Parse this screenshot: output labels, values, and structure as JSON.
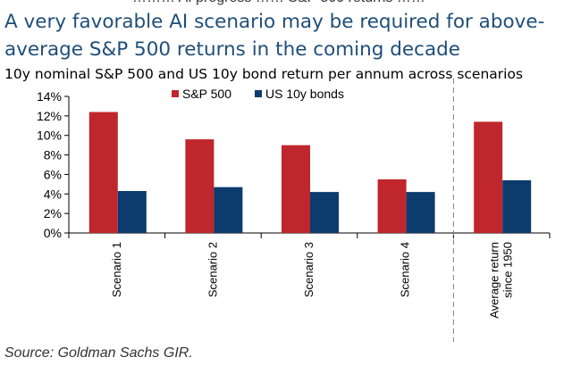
{
  "header": {
    "title": "A very favorable AI scenario may be required for above-average S&P 500 returns in the coming decade",
    "subtitle": "10y nominal S&P 500 and US 10y bond return per annum across scenarios"
  },
  "source": "Source: Goldman Sachs GIR.",
  "colors": {
    "sp500": "#c0262d",
    "bonds": "#0c3b6e",
    "title": "#1f4e79"
  },
  "chart_data": {
    "type": "bar",
    "title": "",
    "xlabel": "",
    "ylabel": "",
    "categories": [
      "Scenario 1",
      "Scenario 2",
      "Scenario 3",
      "Scenario 4",
      [
        "Average return",
        "since 1950"
      ]
    ],
    "series": [
      {
        "name": "S&P 500",
        "values": [
          12.4,
          9.6,
          9.0,
          5.5,
          11.4
        ]
      },
      {
        "name": "US 10y bonds",
        "values": [
          4.3,
          4.7,
          4.2,
          4.2,
          5.4
        ]
      }
    ],
    "ylim": [
      0,
      14
    ],
    "yticks": [
      0,
      2,
      4,
      6,
      8,
      10,
      12,
      14
    ],
    "ytick_labels": [
      "0%",
      "2%",
      "4%",
      "6%",
      "8%",
      "10%",
      "12%",
      "14%"
    ],
    "grid": false,
    "legend": "top-center",
    "separator_before_category": 4
  }
}
